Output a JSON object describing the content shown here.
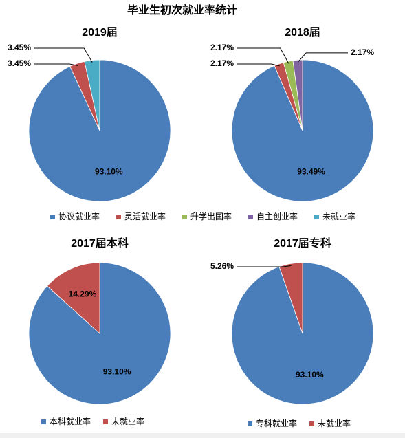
{
  "title": "毕业生初次就业率统计",
  "chart_data": [
    {
      "type": "pie",
      "title": "2019届",
      "categories": [
        "协议就业率",
        "灵活就业率",
        "升学出国率",
        "自主创业率",
        "未就业率"
      ],
      "values": [
        93.1,
        3.45,
        null,
        null,
        3.45
      ],
      "value_labels": [
        "93.10%",
        "3.45%",
        null,
        null,
        "3.45%"
      ],
      "colors": [
        "#4a7ebb",
        "#c0504d",
        "#9bbb59",
        "#8064a2",
        "#4bacc6"
      ],
      "legend": "bottom"
    },
    {
      "type": "pie",
      "title": "2018届",
      "categories": [
        "协议就业率",
        "灵活就业率",
        "升学出国率",
        "自主创业率",
        "未就业率"
      ],
      "values": [
        93.49,
        2.17,
        2.17,
        2.17,
        null
      ],
      "value_labels": [
        "93.49%",
        "2.17%",
        "2.17%",
        "2.17%",
        null
      ],
      "colors": [
        "#4a7ebb",
        "#c0504d",
        "#9bbb59",
        "#8064a2",
        "#4bacc6"
      ]
    },
    {
      "type": "pie",
      "title": "2017届本科",
      "categories": [
        "本科就业率",
        "未就业率"
      ],
      "values": [
        93.1,
        14.29
      ],
      "value_labels": [
        "93.10%",
        "14.29%"
      ],
      "colors": [
        "#4a7ebb",
        "#c0504d"
      ],
      "legend": "bottom"
    },
    {
      "type": "pie",
      "title": "2017届专科",
      "categories": [
        "专科就业率",
        "未就业率"
      ],
      "values": [
        93.1,
        5.26
      ],
      "value_labels": [
        "93.10%",
        "5.26%"
      ],
      "colors": [
        "#4a7ebb",
        "#c0504d"
      ],
      "legend": "bottom"
    }
  ]
}
